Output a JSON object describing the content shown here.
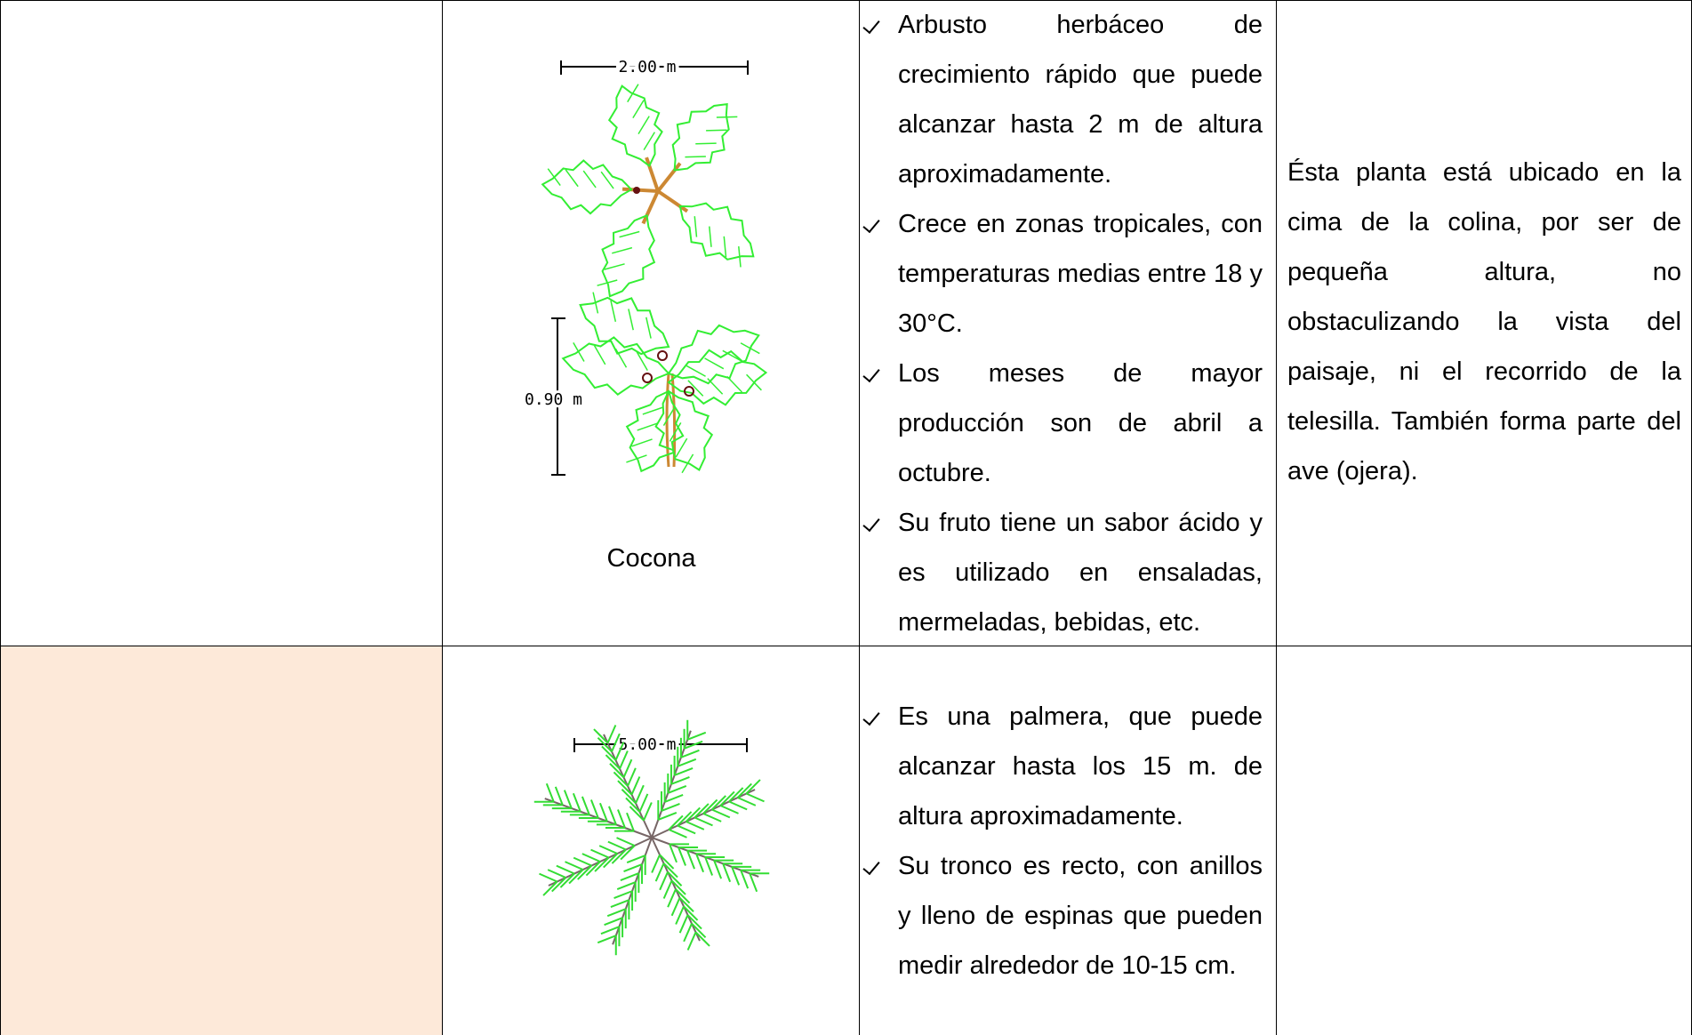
{
  "table": {
    "rows": [
      {
        "plan_dimension": "2.00 m",
        "elevation_dimension": "0.90 m",
        "plant_name": "Cocona",
        "characteristics": [
          "Arbusto herbáceo de crecimiento rápido que puede alcanzar hasta 2 m de altura aproximadamente.",
          "Crece en zonas tropicales, con temperaturas medias entre 18 y 30°C.",
          "Los meses de mayor producción son de abril a octubre.",
          "Su fruto tiene un sabor ácido y es utilizado en ensaladas, mermeladas, bebidas, etc."
        ],
        "location": "Ésta planta está ubicado en la cima de la colina, por ser de pequeña altura, no obstaculizando  la vista del paisaje, ni el recorrido de la telesilla. También forma parte del ave (ojera)."
      },
      {
        "plan_dimension": "5.00 m",
        "characteristics": [
          "Es una palmera, que puede alcanzar hasta los 15 m. de altura aproximadamente.",
          "Su tronco es recto, con anillos y lleno de espinas que pueden medir alrededor de 10-15 cm."
        ]
      }
    ]
  }
}
